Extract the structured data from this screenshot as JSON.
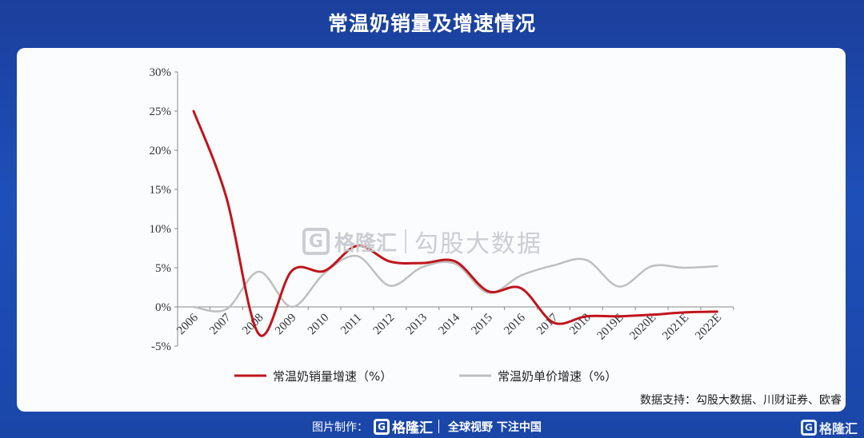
{
  "header": {
    "title": "常温奶销量及增速情况"
  },
  "chart_data": {
    "type": "line",
    "categories": [
      "2006",
      "2007",
      "2008",
      "2009",
      "2010",
      "2011",
      "2012",
      "2013",
      "2014",
      "2015",
      "2016",
      "2017",
      "2018",
      "2019E",
      "2020E",
      "2021E",
      "2022E"
    ],
    "series": [
      {
        "name": "常温奶销量增速（%）",
        "color": "#c0151c",
        "values": [
          25,
          14,
          -3.5,
          4.6,
          4.6,
          7.8,
          5.8,
          5.6,
          5.8,
          2.0,
          2.4,
          -2.0,
          -1.2,
          -1.2,
          -1.0,
          -0.7,
          -0.6
        ]
      },
      {
        "name": "常温奶单价增速（%）",
        "color": "#bfbfbf",
        "values": [
          0,
          -0.3,
          4.5,
          0.0,
          4.3,
          6.5,
          2.7,
          5.1,
          5.5,
          1.8,
          4.0,
          5.3,
          6.0,
          2.6,
          5.2,
          5.0,
          5.2
        ]
      }
    ],
    "yticks": [
      "30%",
      "25%",
      "20%",
      "15%",
      "10%",
      "5%",
      "0%",
      "-5%"
    ],
    "ylim": [
      -5,
      30
    ],
    "grid": false,
    "legend_position": "bottom"
  },
  "watermark": {
    "logo_letter": "G",
    "brand": "格隆汇",
    "text": "勾股大数据"
  },
  "source": {
    "text": "数据支持：勾股大数据、川财证券、欧睿"
  },
  "footer": {
    "label": "图片制作：",
    "logo_letter": "G",
    "brand": "格隆汇",
    "slogan": "全球视野 下注中国",
    "right_logo_letter": "G",
    "right_brand": "格隆汇"
  }
}
